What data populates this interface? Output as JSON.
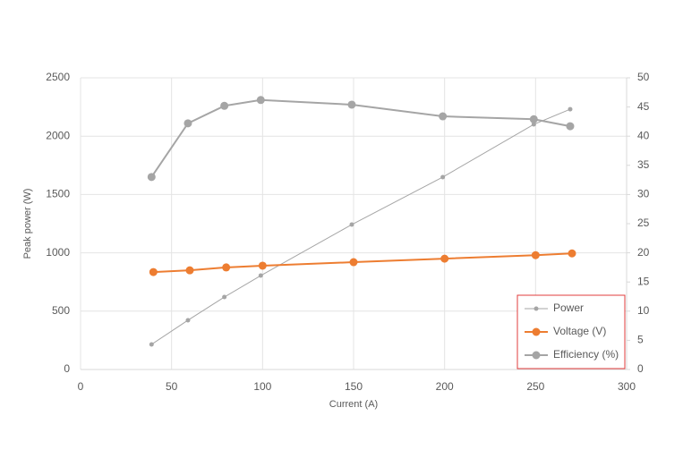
{
  "chart_data": {
    "type": "line",
    "x_label": "Current (A)",
    "y_label": "Peak power (W)",
    "xlim": [
      0,
      300
    ],
    "xticks": [
      0,
      50,
      100,
      150,
      200,
      250,
      300
    ],
    "ylim": [
      0,
      2500
    ],
    "yticks": [
      0,
      500,
      1000,
      1500,
      2000,
      2500
    ],
    "y2lim": [
      0,
      50
    ],
    "y2ticks": [
      0,
      5,
      10,
      15,
      20,
      25,
      30,
      35,
      40,
      45,
      50
    ],
    "grid": true,
    "legend": "lower right",
    "series": [
      {
        "name": "Power",
        "color": "#a5a5a5",
        "x": [
          39,
          59,
          79,
          99,
          149,
          199,
          249,
          269
        ],
        "values": [
          215,
          422,
          621,
          805,
          1242,
          1649,
          2101,
          2231
        ]
      },
      {
        "name": "Voltage (V)",
        "color": "#ed7d31",
        "axis": "y2",
        "x": [
          40,
          60,
          80,
          100,
          150,
          200,
          250,
          270
        ],
        "values": [
          16.7,
          17.0,
          17.5,
          17.8,
          18.4,
          19.0,
          19.6,
          19.9
        ]
      },
      {
        "name": "Efficiency (%)",
        "color": "#a5a5a5",
        "axis": "y2",
        "x": [
          39,
          59,
          79,
          99,
          149,
          199,
          249,
          269
        ],
        "values": [
          33.0,
          42.2,
          45.2,
          46.2,
          45.4,
          43.4,
          42.9,
          41.7
        ]
      }
    ]
  }
}
